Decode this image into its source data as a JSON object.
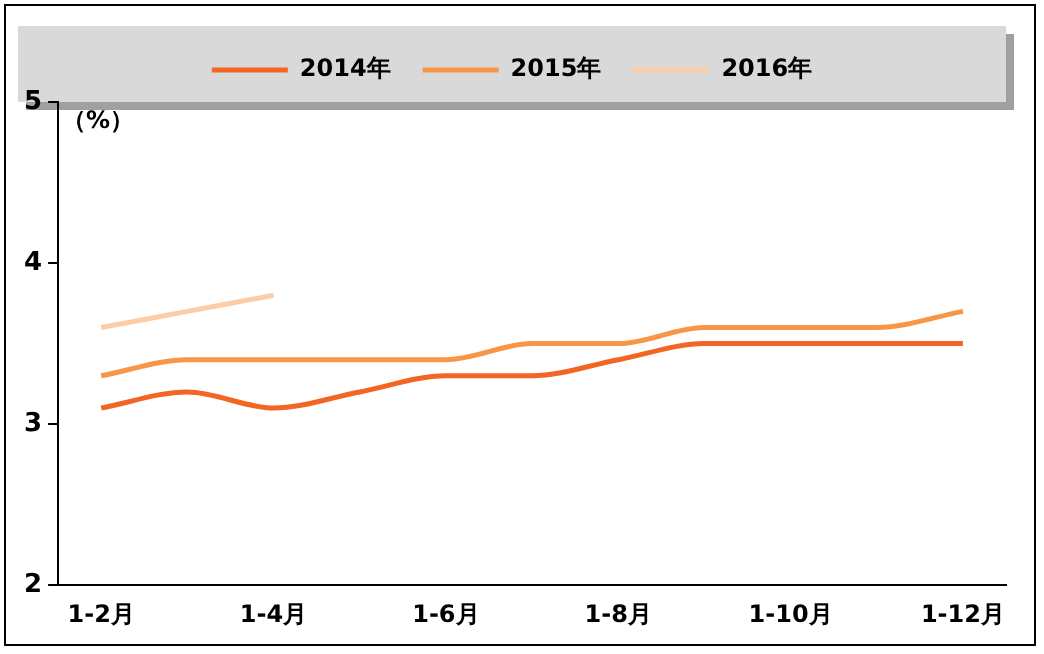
{
  "chart_data": {
    "type": "line",
    "ylabel": "（%）",
    "categories": [
      "1-2月",
      null,
      "1-4月",
      null,
      "1-6月",
      null,
      "1-8月",
      null,
      "1-10月",
      null,
      "1-12月"
    ],
    "series": [
      {
        "name": "2014年",
        "color": "#f26522",
        "values": [
          3.1,
          3.2,
          3.1,
          3.2,
          3.3,
          3.3,
          3.4,
          3.5,
          3.5,
          3.5,
          3.5
        ]
      },
      {
        "name": "2015年",
        "color": "#f79646",
        "values": [
          3.3,
          3.4,
          3.4,
          3.4,
          3.4,
          3.5,
          3.5,
          3.6,
          3.6,
          3.6,
          3.7
        ]
      },
      {
        "name": "2016年",
        "color": "#fbcda8",
        "values": [
          3.6,
          3.7,
          3.8,
          null,
          null,
          null,
          null,
          null,
          null,
          null,
          null
        ]
      }
    ],
    "ylim": [
      2,
      5
    ],
    "yticks": [
      2,
      3,
      4,
      5
    ],
    "grid": false,
    "legend": "top",
    "marker": "none",
    "line_style": "solid"
  }
}
